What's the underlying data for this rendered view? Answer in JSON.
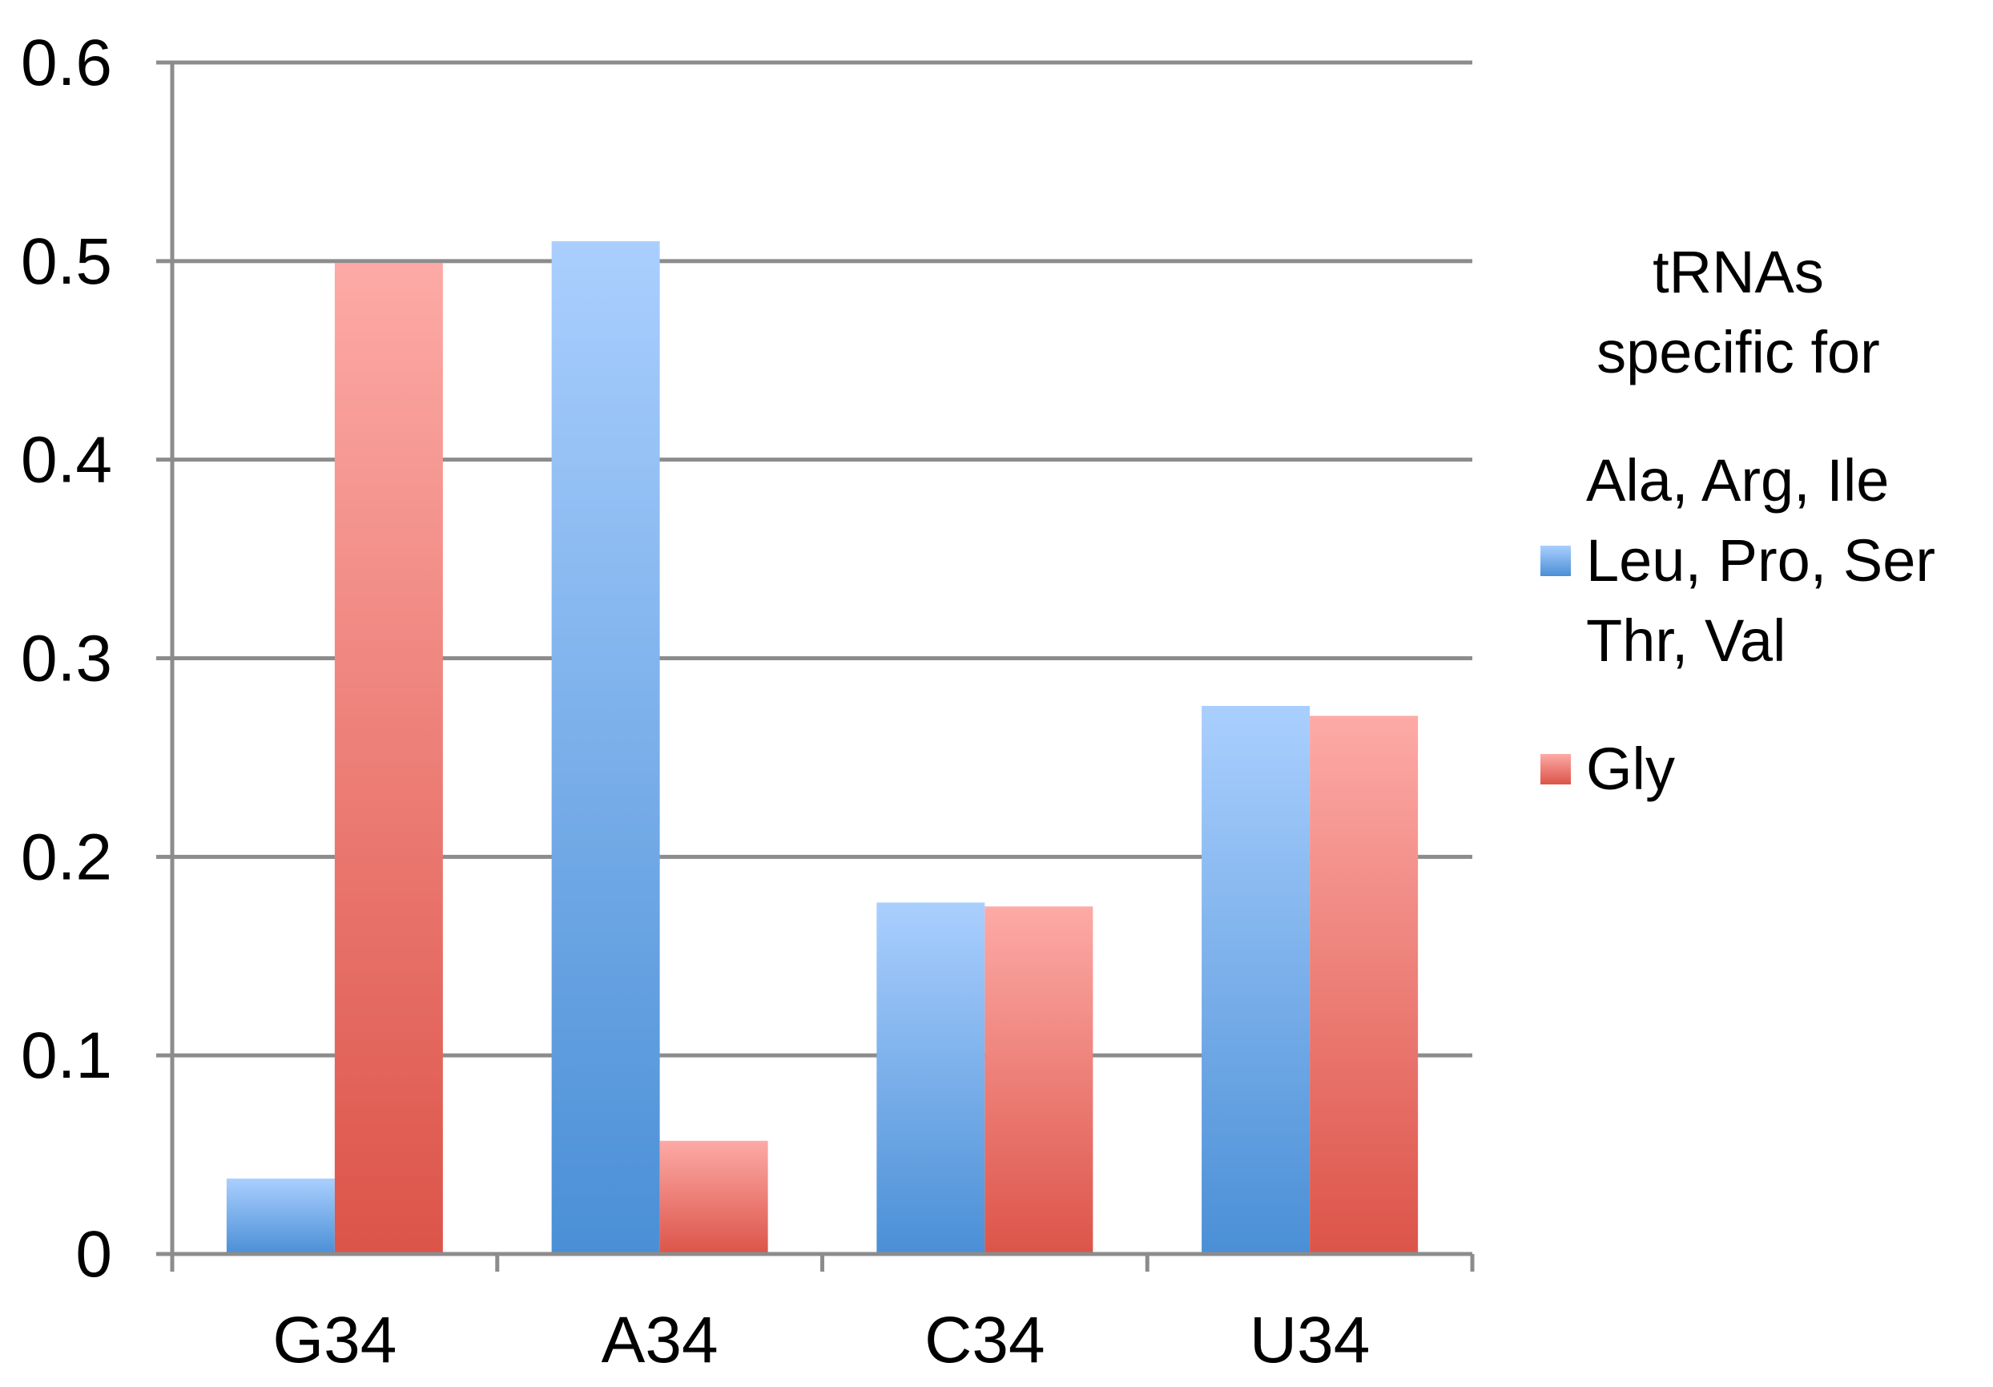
{
  "chart_data": {
    "type": "bar",
    "categories": [
      "G34",
      "A34",
      "C34",
      "U34"
    ],
    "series": [
      {
        "name": "Ala, Arg, Ile Leu, Pro, Ser Thr, Val",
        "name_lines": [
          "Ala, Arg, Ile",
          "Leu, Pro, Ser",
          "Thr, Val"
        ],
        "values": [
          0.038,
          0.51,
          0.177,
          0.276
        ],
        "color_top": "#aacffe",
        "color_bottom": "#4a8fd6"
      },
      {
        "name": "Gly",
        "name_lines": [
          "Gly"
        ],
        "values": [
          0.499,
          0.057,
          0.175,
          0.271
        ],
        "color_top": "#fdaaa6",
        "color_bottom": "#dc5449"
      }
    ],
    "ylim": [
      0,
      0.6
    ],
    "yticks": [
      "0",
      "0.1",
      "0.2",
      "0.3",
      "0.4",
      "0.5",
      "0.6"
    ],
    "grid": true,
    "legend": {
      "title_lines": [
        "tRNAs",
        "specific for"
      ],
      "placement": "right"
    },
    "title": "",
    "xlabel": "",
    "ylabel": ""
  }
}
